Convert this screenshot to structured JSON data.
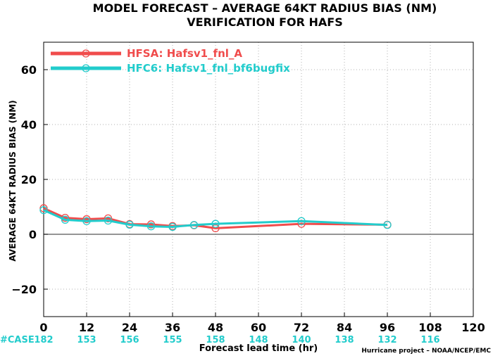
{
  "chart_data": {
    "type": "line",
    "title": "MODEL FORECAST – AVERAGE 64KT RADIUS BIAS (NM)",
    "subtitle": "VERIFICATION FOR HAFS",
    "ylabel": "AVERAGE 64KT RADIUS BIAS (NM)",
    "xlabel": "Forecast lead time (hr)",
    "credit": "Hurricane project – NOAA/NCEP/EMC",
    "xlim": [
      0,
      120
    ],
    "ylim": [
      -30,
      70
    ],
    "xticks": [
      "0",
      "12",
      "24",
      "36",
      "48",
      "60",
      "72",
      "84",
      "96",
      "108",
      "120"
    ],
    "yticks": [
      "60",
      "40",
      "20",
      "0",
      "−20"
    ],
    "grid": true,
    "legend_position": "top-left",
    "series": [
      {
        "name": "HFSA: Hafsv1_fnl_A",
        "color": "#f04c4c",
        "x": [
          0,
          6,
          12,
          18,
          24,
          30,
          36,
          42,
          48,
          72,
          96
        ],
        "y": [
          9.5,
          6.0,
          5.5,
          5.8,
          3.7,
          3.6,
          3.0,
          3.3,
          2.2,
          3.8,
          3.5
        ]
      },
      {
        "name": "HFC6: Hafsv1_fnl_bf6bugfix",
        "color": "#22cccc",
        "x": [
          0,
          6,
          12,
          18,
          24,
          30,
          36,
          42,
          48,
          72,
          96
        ],
        "y": [
          8.8,
          5.3,
          4.8,
          5.0,
          3.5,
          2.9,
          2.7,
          3.4,
          3.8,
          4.8,
          3.4
        ]
      }
    ],
    "case_counts": {
      "label": "#CASE",
      "color": "#22cccc",
      "values": [
        "182",
        "153",
        "156",
        "155",
        "158",
        "148",
        "140",
        "138",
        "132",
        "116"
      ]
    }
  }
}
